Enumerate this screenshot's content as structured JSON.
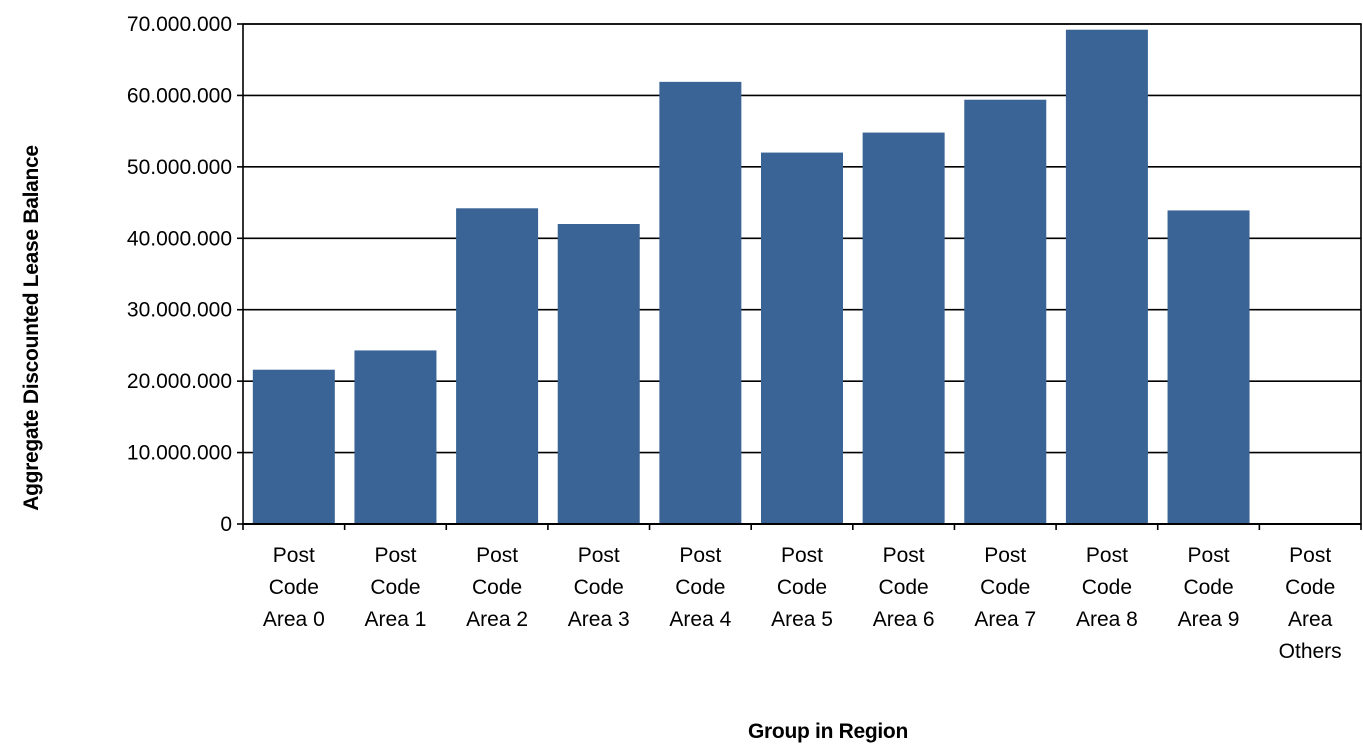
{
  "chart_data": {
    "type": "bar",
    "categories": [
      [
        "Post",
        "Code",
        "Area 0"
      ],
      [
        "Post",
        "Code",
        "Area 1"
      ],
      [
        "Post",
        "Code",
        "Area 2"
      ],
      [
        "Post",
        "Code",
        "Area 3"
      ],
      [
        "Post",
        "Code",
        "Area 4"
      ],
      [
        "Post",
        "Code",
        "Area 5"
      ],
      [
        "Post",
        "Code",
        "Area 6"
      ],
      [
        "Post",
        "Code",
        "Area 7"
      ],
      [
        "Post",
        "Code",
        "Area 8"
      ],
      [
        "Post",
        "Code",
        "Area 9"
      ],
      [
        "Post",
        "Code",
        "Area",
        "Others"
      ]
    ],
    "values": [
      21600000,
      24300000,
      44200000,
      42000000,
      61900000,
      52000000,
      54800000,
      59400000,
      69200000,
      43900000,
      0
    ],
    "xlabel": "Group in Region",
    "ylabel": "Aggregate Discounted Lease Balance",
    "ylim": [
      0,
      70000000
    ],
    "yticks": [
      "0",
      "10.000.000",
      "20.000.000",
      "30.000.000",
      "40.000.000",
      "50.000.000",
      "60.000.000",
      "70.000.000"
    ],
    "grid": true,
    "colors": {
      "bar": "#3A6496",
      "grid": "#000000",
      "axis": "#000000"
    }
  }
}
